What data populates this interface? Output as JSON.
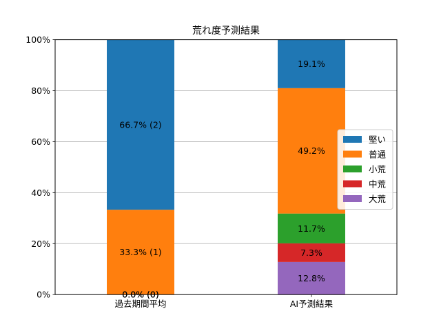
{
  "chart_data": {
    "type": "bar",
    "stacked": true,
    "title": "荒れ度予測結果",
    "xlabel": "",
    "ylabel": "",
    "ylim": [
      0,
      100
    ],
    "y_ticks": [
      "0%",
      "20%",
      "40%",
      "60%",
      "80%",
      "100%"
    ],
    "grid": "horizontal",
    "legend_position": "right",
    "categories": [
      "過去期間平均",
      "AI予測結果"
    ],
    "series": [
      {
        "name": "堅い",
        "color": "#1f77b4",
        "values": [
          66.7,
          19.1
        ],
        "labels": [
          "66.7% (2)",
          "19.1%"
        ]
      },
      {
        "name": "普通",
        "color": "#ff7f0e",
        "values": [
          33.3,
          49.2
        ],
        "labels": [
          "33.3% (1)",
          "49.2%"
        ]
      },
      {
        "name": "小荒",
        "color": "#2ca02c",
        "values": [
          0.0,
          11.7
        ],
        "labels": [
          "0.0% (0)",
          "11.7%"
        ]
      },
      {
        "name": "中荒",
        "color": "#d62728",
        "values": [
          0.0,
          7.3
        ],
        "labels": [
          "0.0% (0)",
          "7.3%"
        ]
      },
      {
        "name": "大荒",
        "color": "#9467bd",
        "values": [
          0.0,
          12.8
        ],
        "labels": [
          "0.0% (0)",
          "12.8%"
        ]
      }
    ],
    "stack_order_bottom_to_top": [
      "大荒",
      "中荒",
      "小荒",
      "普通",
      "堅い"
    ]
  }
}
